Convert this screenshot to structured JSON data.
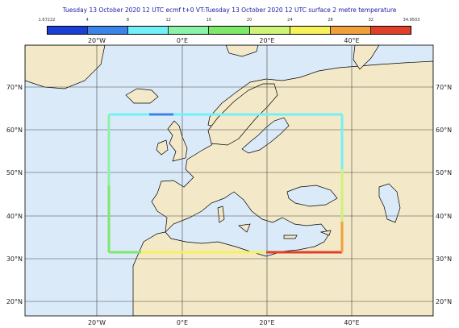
{
  "title": "Tuesday 13 October 2020 12 UTC ecmf t+0 VT:Tuesday 13 October 2020 12 UTC surface  2 metre temperature",
  "colorbar": {
    "labels": [
      "1.67222",
      "4",
      "8",
      "12",
      "16",
      "20",
      "24",
      "28",
      "32",
      "34.9503"
    ],
    "colors": [
      "#1a3fd6",
      "#3b84ea",
      "#73f0f7",
      "#8cf2a8",
      "#7ee86a",
      "#cff278",
      "#f7f25a",
      "#f0a03a",
      "#e0402a"
    ]
  },
  "axes": {
    "lon_labels": [
      "20°W",
      "0°E",
      "20°E",
      "40°E"
    ],
    "lat_labels_left": [
      "70°N",
      "60°N",
      "50°N",
      "40°N",
      "30°N",
      "20°N"
    ],
    "lat_labels_right": [
      "70°N",
      "60°N",
      "50°N",
      "40°N",
      "30°N",
      "20°N"
    ]
  },
  "colors": {
    "ocean": "#dbeaf8",
    "land": "#f3e9c8",
    "coast": "#000000",
    "grid": "#444444"
  }
}
